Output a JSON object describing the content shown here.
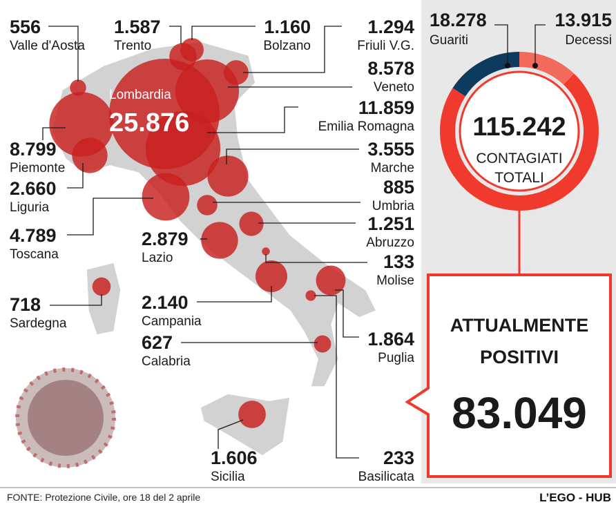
{
  "regions": [
    {
      "name": "Valle d'Aosta",
      "value": 556,
      "label": "556"
    },
    {
      "name": "Trento",
      "value": 1587,
      "label": "1.587"
    },
    {
      "name": "Bolzano",
      "value": 1160,
      "label": "1.160"
    },
    {
      "name": "Friuli V.G.",
      "value": 1294,
      "label": "1.294"
    },
    {
      "name": "Veneto",
      "value": 8578,
      "label": "8.578"
    },
    {
      "name": "Lombardia",
      "value": 25876,
      "label": "25.876"
    },
    {
      "name": "Emilia Romagna",
      "value": 11859,
      "label": "11.859"
    },
    {
      "name": "Piemonte",
      "value": 8799,
      "label": "8.799"
    },
    {
      "name": "Liguria",
      "value": 2660,
      "label": "2.660"
    },
    {
      "name": "Marche",
      "value": 3555,
      "label": "3.555"
    },
    {
      "name": "Toscana",
      "value": 4789,
      "label": "4.789"
    },
    {
      "name": "Umbria",
      "value": 885,
      "label": "885"
    },
    {
      "name": "Lazio",
      "value": 2879,
      "label": "2.879"
    },
    {
      "name": "Abruzzo",
      "value": 1251,
      "label": "1.251"
    },
    {
      "name": "Molise",
      "value": 133,
      "label": "133"
    },
    {
      "name": "Campania",
      "value": 2140,
      "label": "2.140"
    },
    {
      "name": "Puglia",
      "value": 1864,
      "label": "1.864"
    },
    {
      "name": "Basilicata",
      "value": 233,
      "label": "233"
    },
    {
      "name": "Calabria",
      "value": 627,
      "label": "627"
    },
    {
      "name": "Sicilia",
      "value": 1606,
      "label": "1.606"
    },
    {
      "name": "Sardegna",
      "value": 718,
      "label": "718"
    }
  ],
  "bubble_color": "#c8201e",
  "donut": {
    "total": {
      "value": 115242,
      "label": "115.242"
    },
    "caption": [
      "CONTAGIATI",
      "TOTALI"
    ],
    "segments": [
      {
        "name": "Guariti",
        "value": 18278,
        "label": "18.278",
        "color": "#0d3b5e"
      },
      {
        "name": "Decessi",
        "value": 13915,
        "label": "13.915",
        "color": "#f26a5b"
      }
    ]
  },
  "positive": {
    "title": [
      "ATTUALMENTE",
      "POSITIVI"
    ],
    "value": 83049,
    "label": "83.049",
    "color": "#f03a2e"
  },
  "footer": {
    "source": "FONTE: Protezione Civile, ore 18 del 2 aprile",
    "brand": "L’EGO - HUB"
  }
}
